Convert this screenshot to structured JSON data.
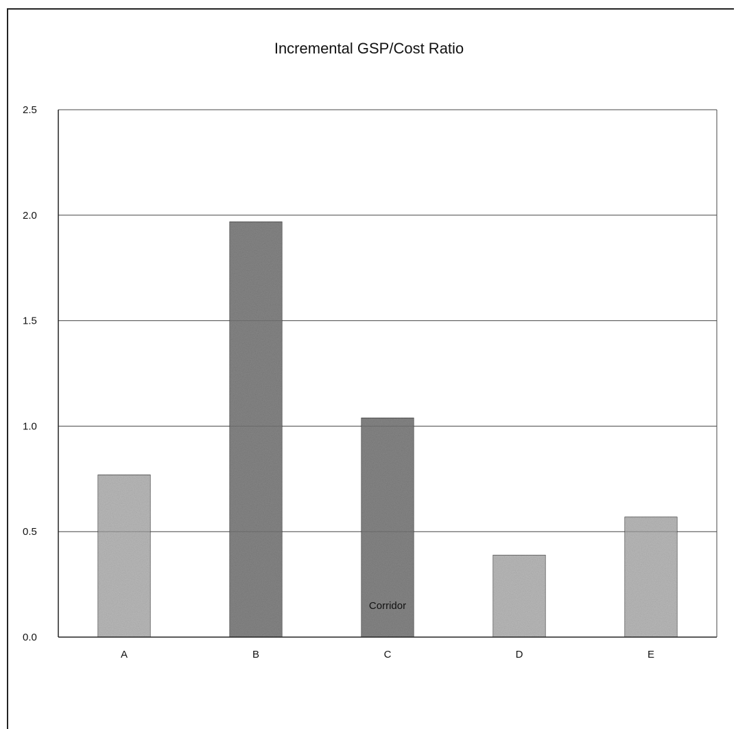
{
  "chart_data": {
    "type": "bar",
    "title": "Incremental GSP/Cost Ratio",
    "xlabel": "Corridor",
    "ylabel": "",
    "categories": [
      "A",
      "B",
      "C",
      "D",
      "E"
    ],
    "values": [
      0.77,
      1.97,
      1.04,
      0.39,
      0.57
    ],
    "ylim": [
      0,
      2.5
    ],
    "yticks": [
      "0.0",
      "0.5",
      "1.0",
      "1.5",
      "2.0",
      "2.5"
    ],
    "grid": true,
    "legend": "none",
    "colors": {
      "bar_fill": "#9a9a9a",
      "bar_fill_dark": "#6e6e6e",
      "axis": "#222222",
      "grid": "#444444"
    }
  }
}
